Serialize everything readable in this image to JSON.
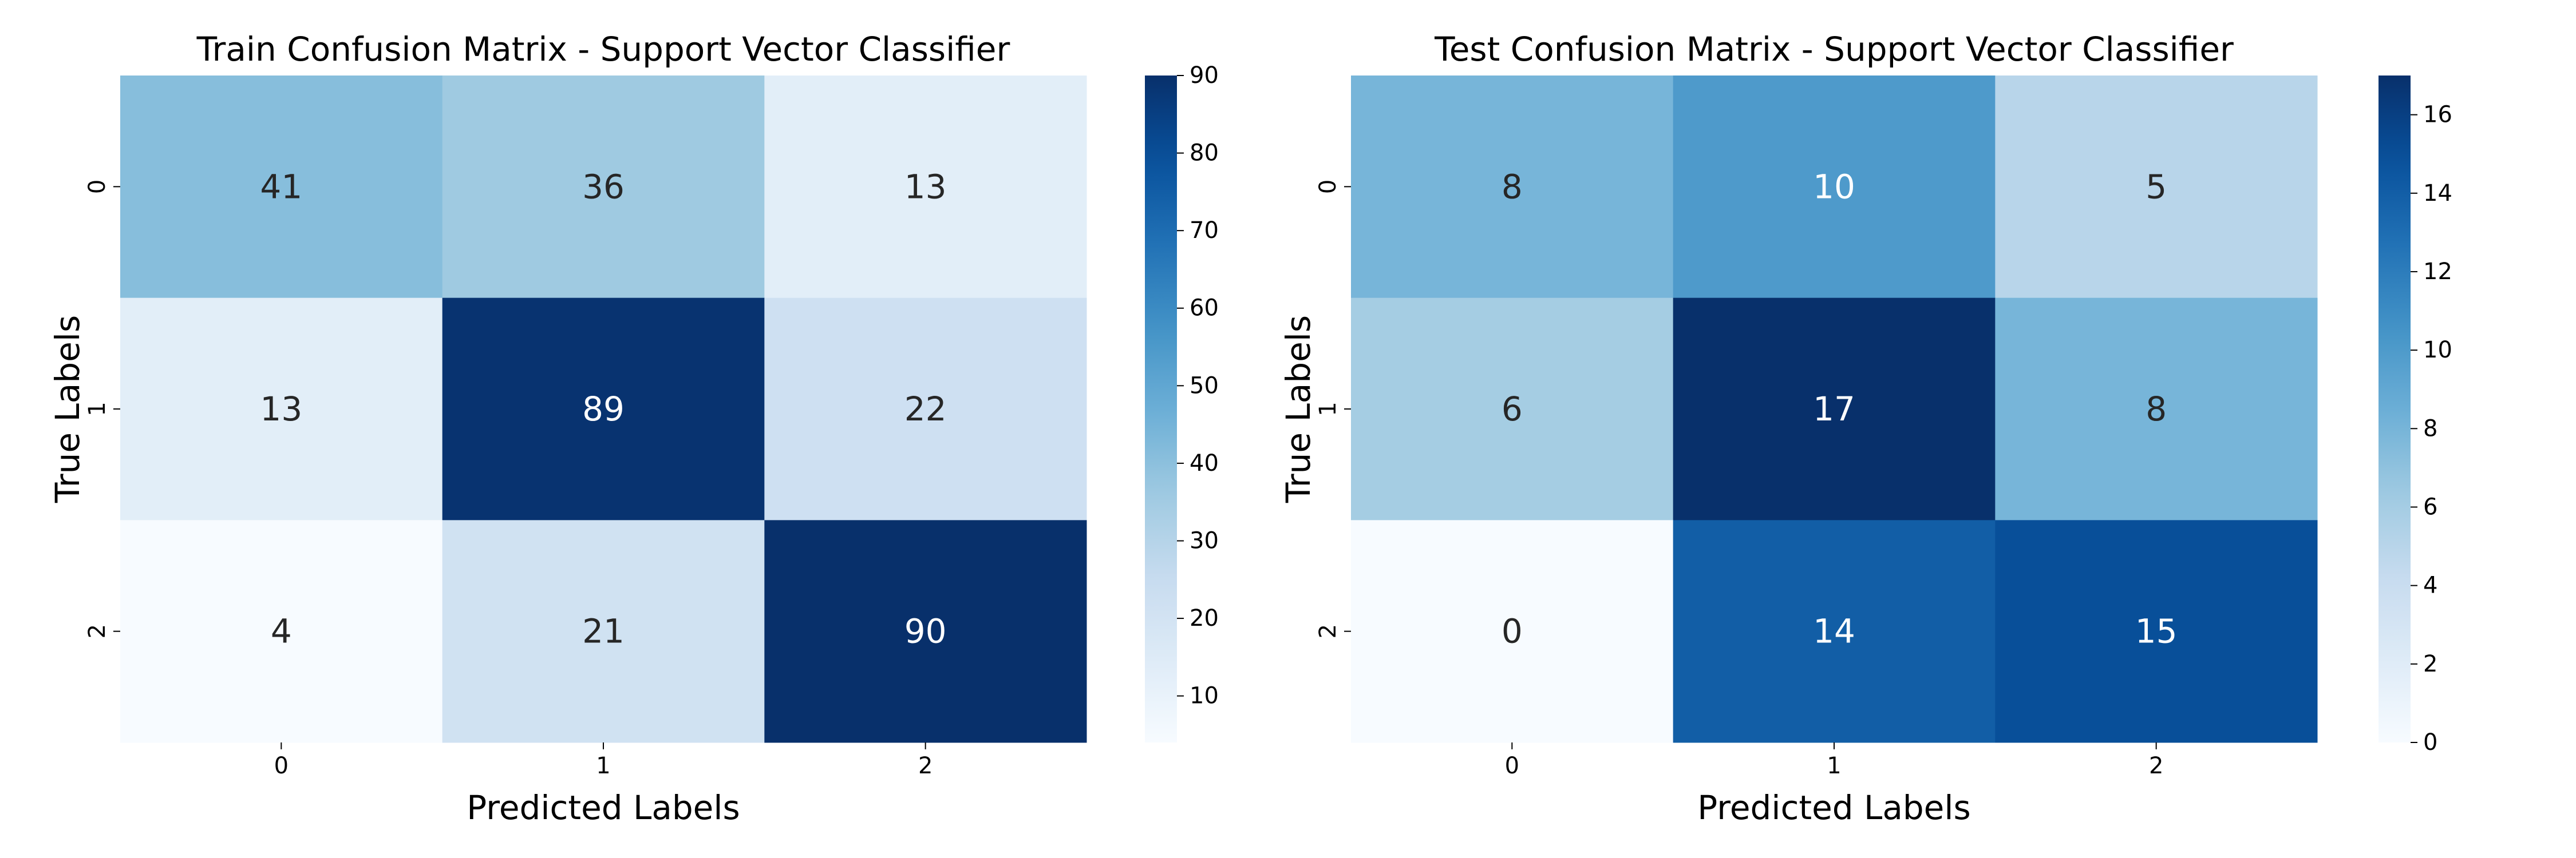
{
  "chart_data": [
    {
      "type": "heatmap",
      "title": "Train Confusion Matrix - Support Vector Classifier",
      "xlabel": "Predicted Labels",
      "ylabel": "True Labels",
      "x_categories": [
        "0",
        "1",
        "2"
      ],
      "y_categories": [
        "0",
        "1",
        "2"
      ],
      "values": [
        [
          41,
          36,
          13
        ],
        [
          13,
          89,
          22
        ],
        [
          4,
          21,
          90
        ]
      ],
      "colormap": "Blues",
      "colorbar": {
        "vmin": 4,
        "vmax": 90,
        "ticks": [
          10,
          20,
          30,
          40,
          50,
          60,
          70,
          80,
          90
        ]
      }
    },
    {
      "type": "heatmap",
      "title": "Test Confusion Matrix - Support Vector Classifier",
      "xlabel": "Predicted Labels",
      "ylabel": "True Labels",
      "x_categories": [
        "0",
        "1",
        "2"
      ],
      "y_categories": [
        "0",
        "1",
        "2"
      ],
      "values": [
        [
          8,
          10,
          5
        ],
        [
          6,
          17,
          8
        ],
        [
          0,
          14,
          15
        ]
      ],
      "colormap": "Blues",
      "colorbar": {
        "vmin": 0,
        "vmax": 17,
        "ticks": [
          0,
          2,
          4,
          6,
          8,
          10,
          12,
          14,
          16
        ]
      }
    }
  ]
}
